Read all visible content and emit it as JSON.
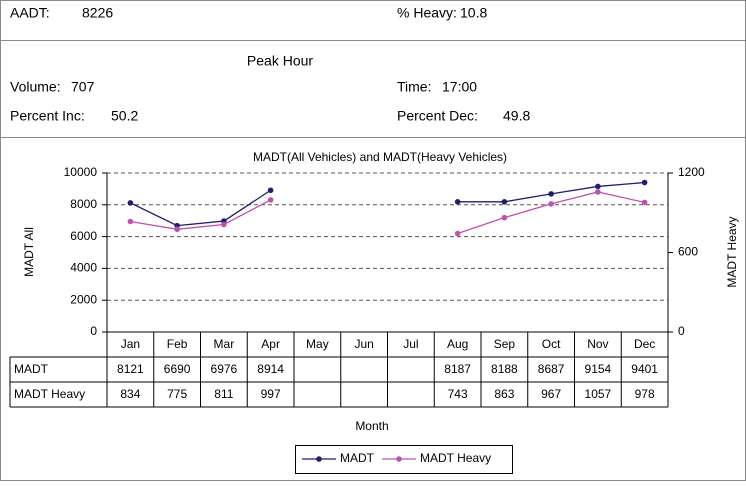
{
  "header": {
    "aadt": {
      "label": "AADT:",
      "value": 8226
    },
    "heavy": {
      "label": "% Heavy:",
      "value": 10.8
    },
    "peak_title": "Peak Hour",
    "volume": {
      "label": "Volume:",
      "value": 707
    },
    "time": {
      "label": "Time:",
      "value": "17:00"
    },
    "inc": {
      "label": "Percent Inc:",
      "value": 50.2
    },
    "dec": {
      "label": "Percent Dec:",
      "value": 49.8
    }
  },
  "chart_data": {
    "type": "line",
    "title": "MADT(All Vehicles) and MADT(Heavy Vehicles)",
    "x_label": "Month",
    "y_label": "MADT All",
    "y2_label": "MADT Heavy",
    "categories": [
      "Jan",
      "Feb",
      "Mar",
      "Apr",
      "May",
      "Jun",
      "Jul",
      "Aug",
      "Sep",
      "Oct",
      "Nov",
      "Dec"
    ],
    "series": [
      {
        "name": "MADT",
        "color": "#1f1f6e",
        "values": [
          8121,
          6690,
          6976,
          8914,
          null,
          null,
          null,
          8187,
          8188,
          8687,
          9154,
          9401
        ]
      },
      {
        "name": "MADT Heavy",
        "color": "#c050b0",
        "axis": "y2",
        "values": [
          834,
          775,
          811,
          997,
          null,
          null,
          null,
          743,
          863,
          967,
          1057,
          978
        ]
      }
    ],
    "ylim": [
      0,
      10000
    ],
    "yticks": [
      0,
      2000,
      4000,
      6000,
      8000,
      10000
    ],
    "y2lim": [
      0,
      1200
    ],
    "y2ticks": [
      0,
      600,
      1200
    ],
    "grid": true,
    "legend": "bottom"
  }
}
